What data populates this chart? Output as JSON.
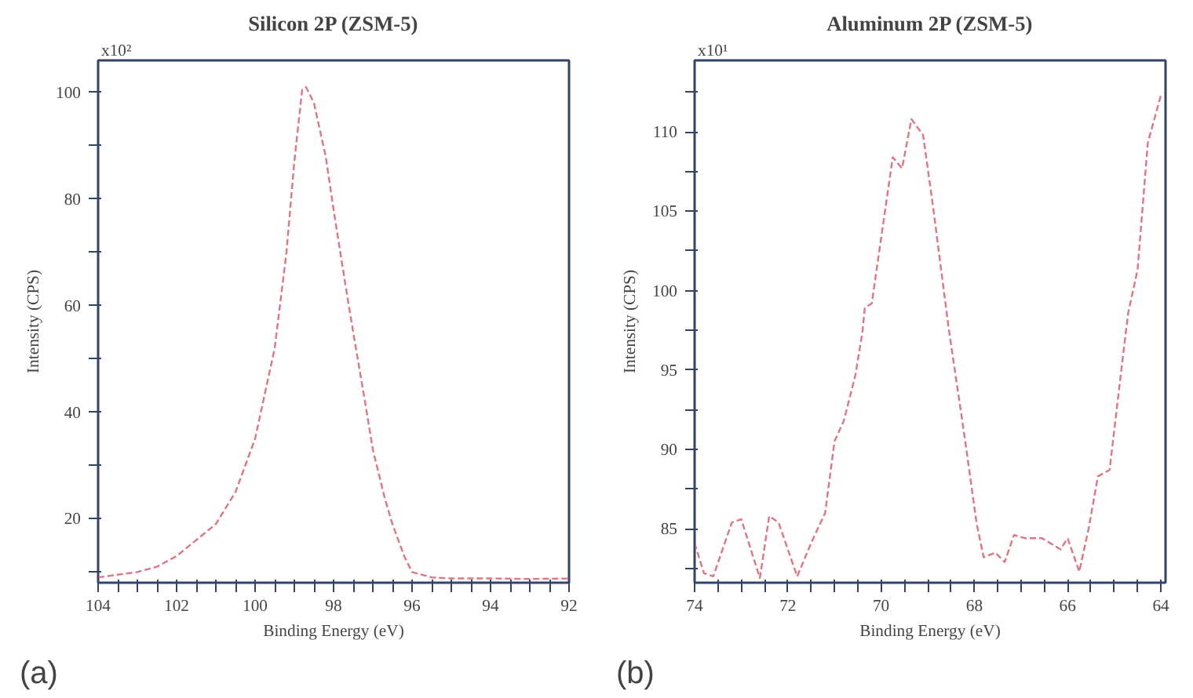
{
  "chart_data": [
    {
      "type": "line",
      "title": "Silicon 2P (ZSM-5)",
      "xlabel": "Binding Energy (eV)",
      "ylabel": "Intensity (CPS)",
      "annotations": [
        "x10²",
        "(a)"
      ],
      "x": [
        104,
        103.5,
        103,
        102.5,
        102,
        101.5,
        101,
        100.5,
        100,
        99.5,
        99.2,
        99,
        98.8,
        98.7,
        98.5,
        98.2,
        98,
        97.7,
        97.5,
        97.2,
        97,
        96.7,
        96.5,
        96.2,
        96,
        95.5,
        95,
        94,
        93,
        92
      ],
      "series": [
        {
          "color": "#e07585",
          "values": [
            9,
            9.5,
            10,
            11,
            13,
            16,
            19,
            25,
            35,
            52,
            70,
            87,
            100.5,
            101,
            98,
            88,
            78,
            64,
            55,
            42,
            33,
            24,
            19,
            13,
            10,
            9,
            8.8,
            8.8,
            8.7,
            8.8
          ]
        }
      ],
      "xlim": [
        104,
        92
      ],
      "ylim": [
        8,
        106
      ],
      "xticks": [
        104,
        {
          "value": 103.5,
          "label": null
        },
        {
          "value": 103,
          "label": null
        },
        {
          "value": 102.5,
          "label": null
        },
        102,
        {
          "value": 101.5,
          "label": null
        },
        {
          "value": 101,
          "label": null
        },
        {
          "value": 100.5,
          "label": null
        },
        100,
        {
          "value": 99.5,
          "label": null
        },
        {
          "value": 99,
          "label": null
        },
        {
          "value": 98.5,
          "label": null
        },
        98,
        {
          "value": 97.5,
          "label": null
        },
        {
          "value": 97,
          "label": null
        },
        {
          "value": 96.5,
          "label": null
        },
        96,
        {
          "value": 95.5,
          "label": null
        },
        {
          "value": 95,
          "label": null
        },
        {
          "value": 94.5,
          "label": null
        },
        94,
        {
          "value": 93.5,
          "label": null
        },
        {
          "value": 93,
          "label": null
        },
        {
          "value": 92.5,
          "label": null
        },
        92
      ],
      "yticks": [
        {
          "value": 10,
          "label": null
        },
        20,
        {
          "value": 30,
          "label": null
        },
        40,
        {
          "value": 50,
          "label": null
        },
        60,
        {
          "value": 70,
          "label": null
        },
        80,
        {
          "value": 90,
          "label": null
        },
        100
      ],
      "grid": false,
      "line_style": "dashed",
      "marker": "none"
    },
    {
      "type": "line",
      "title": "Aluminum 2P (ZSM-5)",
      "xlabel": "Binding Energy (eV)",
      "ylabel": "Intensity (CPS)",
      "annotations": [
        "x10¹",
        "(b)"
      ],
      "x": [
        74.0,
        73.8,
        73.6,
        73.2,
        73.0,
        72.6,
        72.4,
        72.2,
        71.8,
        71.5,
        71.2,
        71.0,
        70.8,
        70.55,
        70.4,
        70.35,
        70.2,
        70.0,
        69.75,
        69.55,
        69.35,
        69.1,
        68.9,
        68.55,
        68.2,
        67.95,
        67.8,
        67.55,
        67.35,
        67.15,
        66.9,
        66.55,
        66.15,
        66.0,
        65.75,
        65.55,
        65.35,
        65.1,
        64.8,
        64.7,
        64.5,
        64.28,
        64.0
      ],
      "series": [
        {
          "color": "#e07585",
          "values": [
            84.1,
            82.2,
            82.0,
            85.4,
            85.6,
            81.9,
            85.8,
            85.4,
            82.0,
            84.1,
            86.0,
            90.5,
            91.8,
            94.7,
            97.4,
            98.9,
            99.2,
            103.3,
            108.4,
            107.7,
            110.8,
            109.8,
            105.6,
            97.6,
            90.6,
            85.3,
            83.2,
            83.5,
            82.9,
            84.6,
            84.4,
            84.4,
            83.7,
            84.4,
            82.3,
            85.0,
            88.3,
            88.7,
            96.2,
            98.6,
            101.3,
            109.3,
            112.3
          ]
        }
      ],
      "xlim": [
        74,
        63.9
      ],
      "ylim": [
        81.6,
        114.5
      ],
      "xticks": [
        74,
        {
          "value": 73.5,
          "label": null
        },
        {
          "value": 73,
          "label": null
        },
        {
          "value": 72.5,
          "label": null
        },
        72,
        {
          "value": 71.5,
          "label": null
        },
        {
          "value": 71,
          "label": null
        },
        {
          "value": 70.5,
          "label": null
        },
        70,
        {
          "value": 69.5,
          "label": null
        },
        {
          "value": 69,
          "label": null
        },
        {
          "value": 68.5,
          "label": null
        },
        68,
        {
          "value": 67.5,
          "label": null
        },
        {
          "value": 67,
          "label": null
        },
        {
          "value": 66.5,
          "label": null
        },
        66,
        {
          "value": 65.5,
          "label": null
        },
        {
          "value": 65,
          "label": null
        },
        {
          "value": 64.5,
          "label": null
        },
        64
      ],
      "yticks": [
        {
          "value": 82.5,
          "label": null
        },
        85,
        {
          "value": 87.5,
          "label": null
        },
        90,
        {
          "value": 92.5,
          "label": null
        },
        95,
        {
          "value": 97.5,
          "label": null
        },
        100,
        {
          "value": 102.5,
          "label": null
        },
        105,
        {
          "value": 107.5,
          "label": null
        },
        110,
        {
          "value": 112.5,
          "label": null
        }
      ],
      "grid": false,
      "line_style": "dashed",
      "marker": "none"
    }
  ]
}
